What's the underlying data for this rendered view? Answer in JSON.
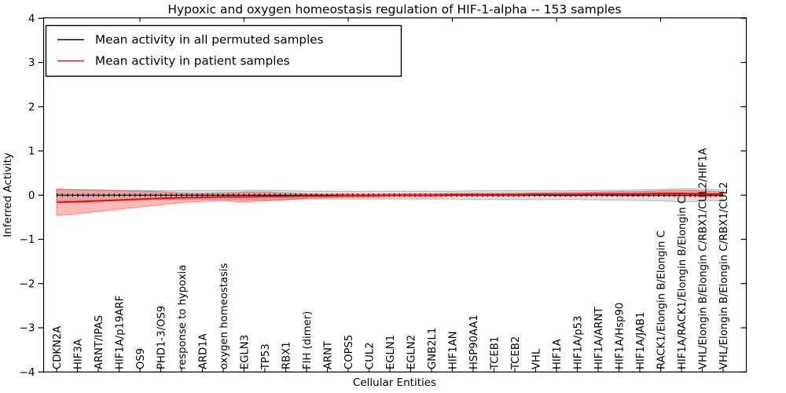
{
  "chart_data": {
    "type": "line",
    "title": "Hypoxic and oxygen homeostasis regulation of HIF-1-alpha -- 153 samples",
    "xlabel": "Cellular Entities",
    "ylabel": "Inferred Activity",
    "ylim": [
      -4,
      4
    ],
    "grid": false,
    "legend_position": "upper left",
    "y_tick_labels": [
      "4",
      "3",
      "2",
      "1",
      "0",
      "−1",
      "−2",
      "−3",
      "−4"
    ],
    "y_tick_values": [
      4,
      3,
      2,
      1,
      0,
      -1,
      -2,
      -3,
      -4
    ],
    "categories": [
      "CDKN2A",
      "HIF3A",
      "ARNT/IPAS",
      "HIF1A/p19ARF",
      "OS9",
      "PHD1-3/OS9",
      "response to hypoxia",
      "ARD1A",
      "oxygen homeostasis",
      "EGLN3",
      "TP53",
      "RBX1",
      "FIH (dimer)",
      "ARNT",
      "COPS5",
      "CUL2",
      "EGLN1",
      "EGLN2",
      "GNB2L1",
      "HIF1AN",
      "HSP90AA1",
      "TCEB1",
      "TCEB2",
      "VHL",
      "HIF1A",
      "HIF1A/p53",
      "HIF1A/ARNT",
      "HIF1A/Hsp90",
      "HIF1A/JAB1",
      "RACK1/Elongin B/Elongin C",
      "HIF1A/RACK1/Elongin B/Elongin C",
      "VHL/Elongin B/Elongin C/RBX1/CUL2/HIF1A",
      "VHL/Elongin B/Elongin C/RBX1/CUL2"
    ],
    "series": [
      {
        "name": "Mean activity in all permuted samples",
        "color": "#000000",
        "band_color": "#000000",
        "band_alpha": 0.12,
        "values": [
          0,
          0,
          0,
          0,
          0,
          0,
          0,
          0,
          0,
          0,
          0,
          0,
          0,
          0,
          0,
          0,
          0,
          0,
          0,
          0,
          0,
          0,
          0,
          0,
          0,
          0,
          0,
          0,
          0,
          0,
          0,
          0,
          0
        ],
        "std": [
          0.13,
          0.12,
          0.12,
          0.11,
          0.11,
          0.1,
          0.1,
          0.1,
          0.1,
          0.11,
          0.11,
          0.1,
          0.09,
          0.09,
          0.09,
          0.09,
          0.09,
          0.09,
          0.09,
          0.09,
          0.1,
          0.1,
          0.1,
          0.1,
          0.1,
          0.1,
          0.11,
          0.11,
          0.12,
          0.13,
          0.15,
          0.14,
          0.12
        ]
      },
      {
        "name": "Mean activity in patient samples",
        "color": "#ff0000",
        "band_color": "#ff0000",
        "band_alpha": 0.27,
        "values": [
          -0.16,
          -0.15,
          -0.13,
          -0.11,
          -0.09,
          -0.07,
          -0.06,
          -0.05,
          -0.04,
          -0.04,
          -0.03,
          -0.03,
          -0.02,
          -0.02,
          -0.01,
          -0.01,
          0.0,
          0.0,
          0.0,
          0.01,
          0.01,
          0.01,
          0.01,
          0.02,
          0.02,
          0.02,
          0.03,
          0.03,
          0.03,
          0.04,
          0.04,
          0.03,
          0.02
        ],
        "std": [
          0.3,
          0.27,
          0.24,
          0.21,
          0.18,
          0.15,
          0.11,
          0.09,
          0.09,
          0.11,
          0.1,
          0.08,
          0.05,
          0.04,
          0.04,
          0.03,
          0.03,
          0.03,
          0.03,
          0.03,
          0.03,
          0.03,
          0.03,
          0.03,
          0.04,
          0.04,
          0.04,
          0.05,
          0.05,
          0.06,
          0.07,
          0.07,
          0.05
        ]
      }
    ]
  }
}
